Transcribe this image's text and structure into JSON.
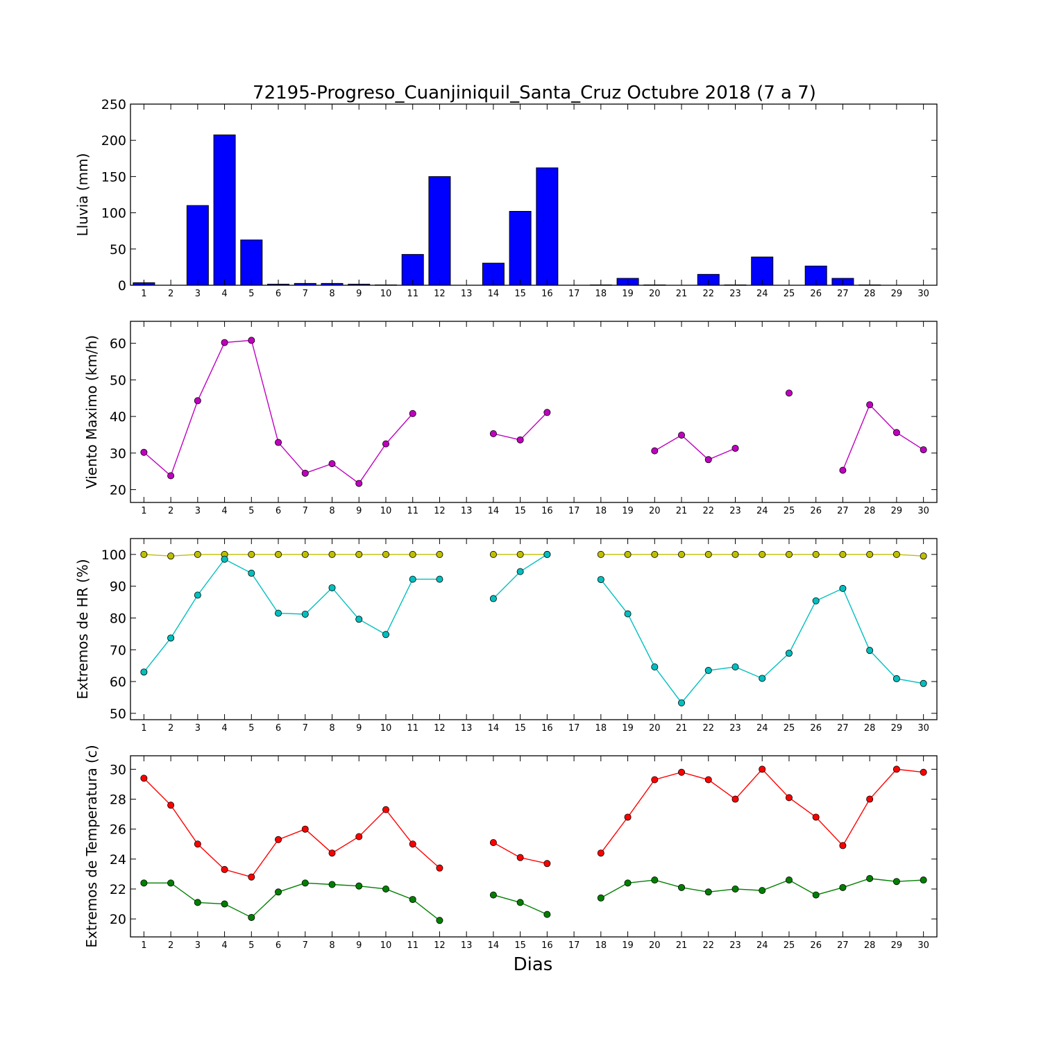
{
  "title": "72195-Progreso_Cuanjiniquil_Santa_Cruz Octubre 2018  (7 a 7)",
  "xlabel": "Dias",
  "days": [
    1,
    2,
    3,
    4,
    5,
    6,
    7,
    8,
    9,
    10,
    11,
    12,
    13,
    14,
    15,
    16,
    17,
    18,
    19,
    20,
    21,
    22,
    23,
    24,
    25,
    26,
    27,
    28,
    29,
    30
  ],
  "chart_data": [
    {
      "type": "bar",
      "ylabel": "Lluvia (mm)",
      "ylim": [
        0,
        250
      ],
      "yticks": [
        0,
        50,
        100,
        150,
        200,
        250
      ],
      "color": "#0000ff",
      "series": [
        {
          "values": [
            3.5,
            0,
            110,
            207.5,
            62.5,
            1.5,
            2.5,
            2.5,
            1.5,
            0.5,
            42.5,
            150,
            0,
            30.5,
            102,
            162,
            0,
            0.5,
            9.5,
            0.5,
            0,
            15,
            0.5,
            39,
            0,
            26.5,
            9.5,
            0.5,
            0,
            0
          ]
        }
      ]
    },
    {
      "type": "line",
      "ylabel": "Viento Maximo (km/h)",
      "ylim": [
        16.5,
        66
      ],
      "yticks": [
        20,
        30,
        40,
        50,
        60
      ],
      "series": [
        {
          "color": "#bf00bf",
          "values": [
            30.2,
            23.8,
            44.3,
            60.2,
            60.8,
            32.9,
            24.5,
            27.1,
            21.7,
            32.5,
            40.8,
            null,
            null,
            35.3,
            33.6,
            41.1,
            null,
            null,
            null,
            30.6,
            34.9,
            28.2,
            31.3,
            null,
            46.4,
            null,
            25.3,
            43.2,
            35.6,
            30.9
          ]
        }
      ]
    },
    {
      "type": "line",
      "ylabel": "Extremos de HR (%)",
      "ylim": [
        48,
        105
      ],
      "yticks": [
        50,
        60,
        70,
        80,
        90,
        100
      ],
      "series": [
        {
          "color": "#bfbf00",
          "values": [
            100,
            99.5,
            100,
            100,
            100,
            100,
            100,
            100,
            100,
            100,
            100,
            100,
            null,
            100,
            100,
            100,
            null,
            100,
            100,
            100,
            100,
            100,
            100,
            100,
            100,
            100,
            100,
            100,
            100,
            99.5
          ]
        },
        {
          "color": "#00bfbf",
          "values": [
            63,
            73.7,
            87.2,
            98.5,
            94.1,
            81.5,
            81.2,
            89.5,
            79.6,
            74.8,
            92.2,
            92.2,
            null,
            86.1,
            94.6,
            100,
            null,
            92.1,
            81.3,
            64.6,
            53.3,
            63.5,
            64.6,
            61,
            68.9,
            85.4,
            89.3,
            69.8,
            60.9,
            59.4
          ]
        }
      ]
    },
    {
      "type": "line",
      "ylabel": "Extremos de Temperatura (c)",
      "ylim": [
        18.8,
        30.9
      ],
      "yticks": [
        20,
        22,
        24,
        26,
        28,
        30
      ],
      "series": [
        {
          "color": "#ff0000",
          "values": [
            29.4,
            27.6,
            25.0,
            23.3,
            22.8,
            25.3,
            26.0,
            24.4,
            25.5,
            27.3,
            25.0,
            23.4,
            null,
            25.1,
            24.1,
            23.7,
            null,
            24.4,
            26.8,
            29.3,
            29.8,
            29.3,
            28.0,
            30.0,
            28.1,
            26.8,
            24.9,
            28.0,
            30.0,
            29.8
          ]
        },
        {
          "color": "#007f00",
          "values": [
            22.4,
            22.4,
            21.1,
            21.0,
            20.1,
            21.8,
            22.4,
            22.3,
            22.2,
            22.0,
            21.3,
            19.9,
            null,
            21.6,
            21.1,
            20.3,
            null,
            21.4,
            22.4,
            22.6,
            22.1,
            21.8,
            22.0,
            21.9,
            22.6,
            21.6,
            22.1,
            22.7,
            22.5,
            22.6
          ]
        }
      ]
    }
  ]
}
